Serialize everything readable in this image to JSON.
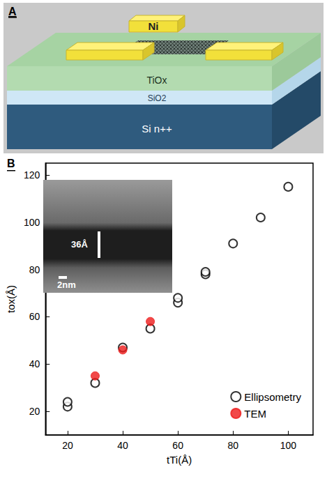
{
  "diagram": {
    "title": "A",
    "labels": {
      "top_electrode": "Ni",
      "film": "TiOx",
      "insulator": "SiO2",
      "substrate": "Si n++"
    }
  },
  "chart_data": {
    "type": "scatter",
    "title": "B",
    "xlabel": "tTi(Å)",
    "ylabel": "tox(Å)",
    "xlim": [
      12,
      109
    ],
    "xticks": [
      20,
      40,
      60,
      80,
      100
    ],
    "ylim": [
      10,
      125
    ],
    "yticks": [
      20,
      40,
      60,
      80,
      100,
      120
    ],
    "grid": false,
    "legend": "lower right",
    "annotations": [
      "36Å",
      "2nm"
    ],
    "series": [
      {
        "name": "Ellipsometry",
        "color": "#000000",
        "marker": "open_circle",
        "x": [
          20,
          20,
          30,
          40,
          50,
          60,
          60,
          70,
          70,
          80,
          90,
          100
        ],
        "values": [
          22,
          24,
          32,
          47,
          55,
          66,
          68,
          78,
          79,
          91,
          102,
          115
        ]
      },
      {
        "name": "TEM",
        "color": "#ee1c1c",
        "marker": "circle",
        "x": [
          30,
          40,
          50
        ],
        "values": [
          35,
          46,
          58
        ]
      }
    ]
  }
}
